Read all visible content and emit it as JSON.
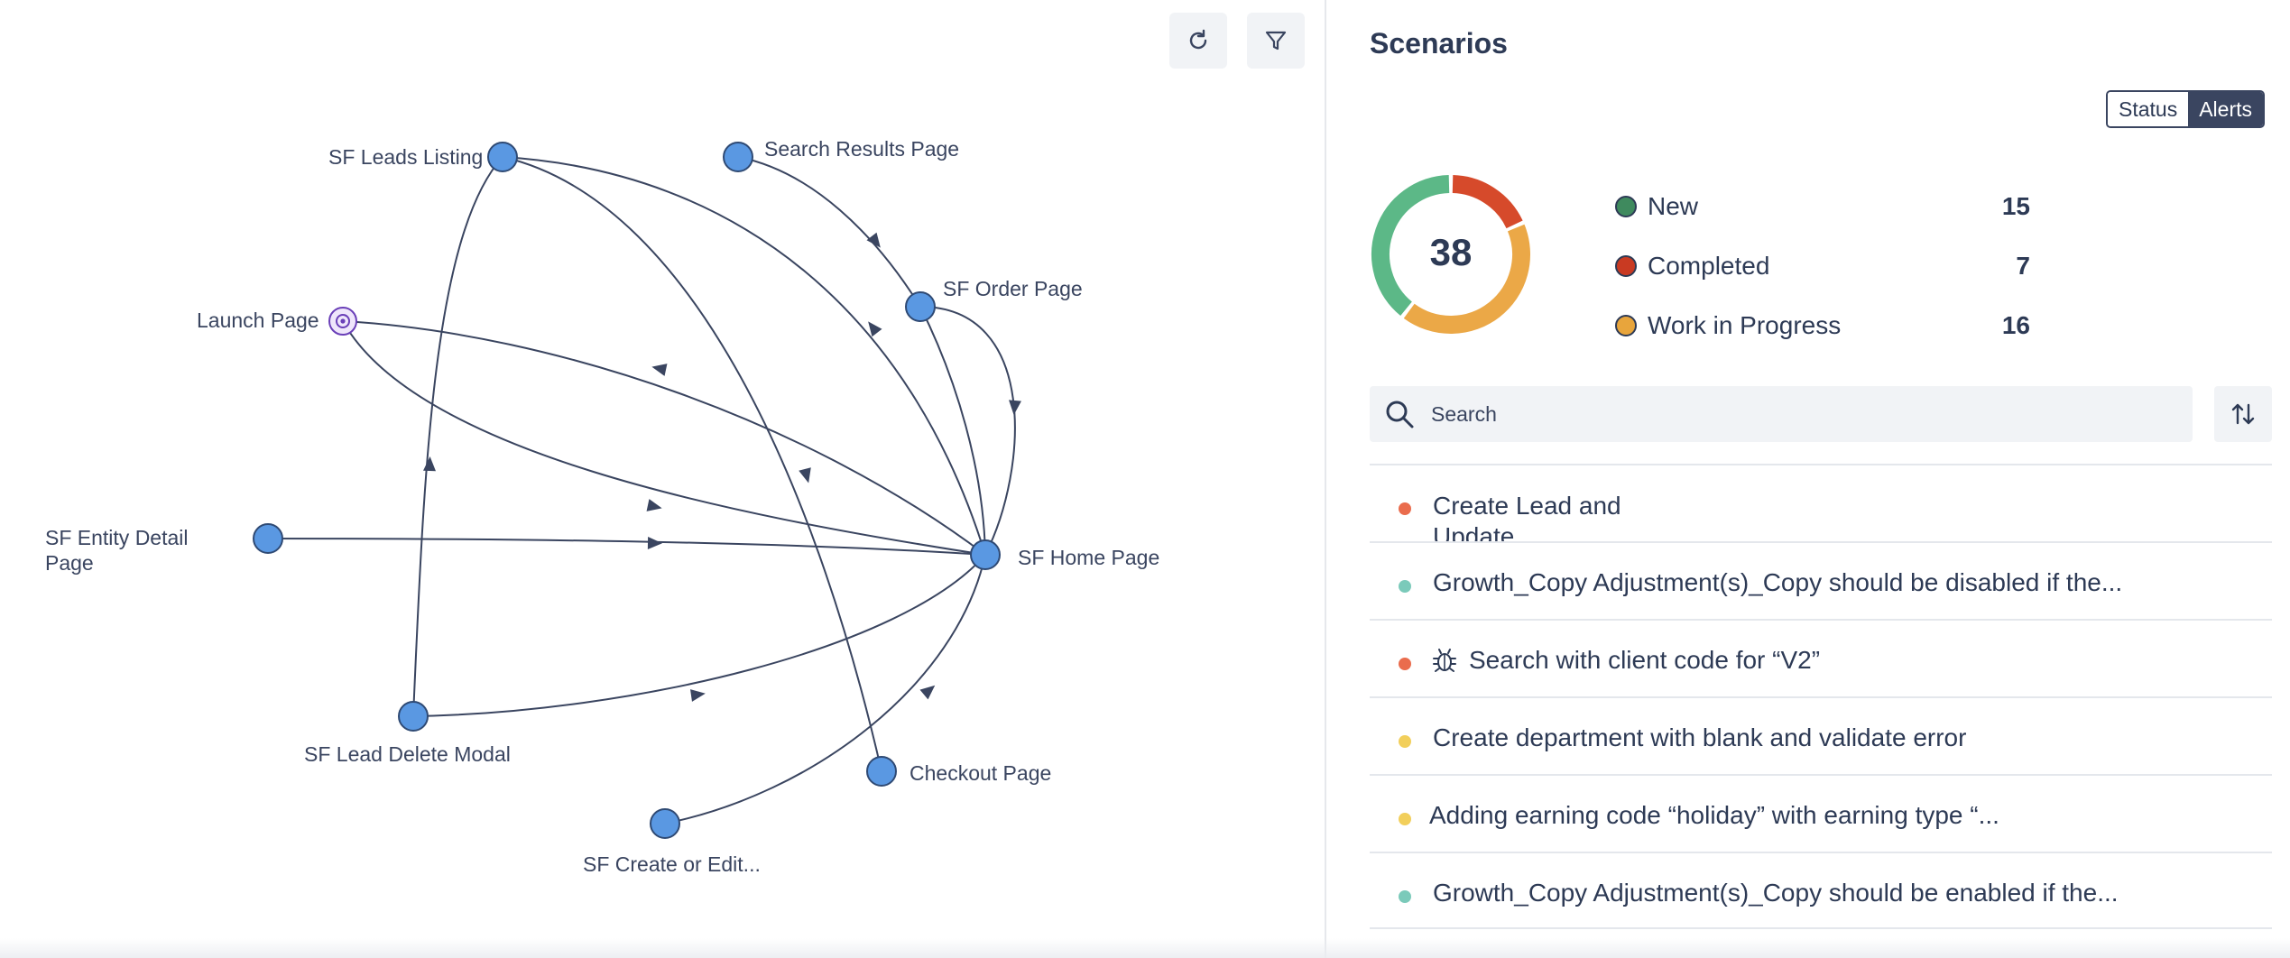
{
  "graph": {
    "nodes": {
      "sf_leads_listing": "SF Leads Listing",
      "search_results_page": "Search Results Page",
      "sf_order_page": "SF Order Page",
      "launch_page": "Launch Page",
      "sf_entity_detail_page_line1": "SF Entity Detail",
      "sf_entity_detail_page_line2": "Page",
      "sf_home_page": "SF Home Page",
      "sf_lead_delete_modal": "SF Lead Delete Modal",
      "checkout_page": "Checkout Page",
      "sf_create_or_edit": "SF Create or Edit..."
    },
    "toolbar": {
      "refresh_icon": "refresh-icon",
      "filter_icon": "filter-icon"
    }
  },
  "scenarios": {
    "title": "Scenarios",
    "toggle": {
      "status": "Status",
      "alerts": "Alerts",
      "active": "Alerts"
    },
    "total": "38",
    "legend": [
      {
        "label": "New",
        "count": "15",
        "color": "#5cb887",
        "dot_color": "#3f8a5e"
      },
      {
        "label": "Completed",
        "count": "7",
        "color": "#d64a2b",
        "dot_color": "#c93a22"
      },
      {
        "label": "Work in Progress",
        "count": "16",
        "color": "#eba847",
        "dot_color": "#e8a53c"
      }
    ],
    "search": {
      "placeholder": "Search",
      "value": ""
    },
    "items": [
      {
        "text": "Create Lead and Update",
        "status_color": "#ea6c4d"
      },
      {
        "text": "Growth_Copy Adjustment(s)_Copy should be disabled if the...",
        "status_color": "#7bcaba"
      },
      {
        "text": "Search with client code for “V2”",
        "status_color": "#ea6c4d",
        "icon": "bug-icon"
      },
      {
        "text": "Create department with blank and validate error",
        "status_color": "#f2cf5b"
      },
      {
        "text": "Adding earning code “holiday” with earning type “...",
        "status_color": "#f2cf5b"
      },
      {
        "text": "Growth_Copy Adjustment(s)_Copy should be enabled if the...",
        "status_color": "#7bcaba"
      }
    ]
  }
}
